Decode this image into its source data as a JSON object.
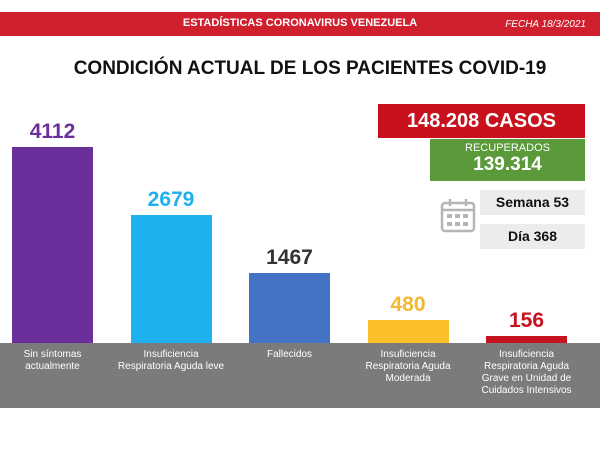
{
  "header": {
    "title": "ESTADÍSTICAS CORONAVIRUS VENEZUELA",
    "date": "FECHA 18/3/2021"
  },
  "summary": {
    "cases": "148.208 CASOS",
    "recovered_label": "RECUPERADOS",
    "recovered": "139.314",
    "week": "Semana 53",
    "day": "Día 368"
  },
  "chart_data": {
    "type": "bar",
    "title": "CONDICIÓN ACTUAL DE LOS PACIENTES COVID-19",
    "categories": [
      "Sin síntomas actualmente",
      "Insuficiencia Respiratoria Aguda leve",
      "Fallecidos",
      "Insuficiencia Respiratoria Aguda Moderada",
      "Insuficiencia Respiratoria Aguda Grave en Unidad de Cuidados Intensivos"
    ],
    "values": [
      4112,
      2679,
      1467,
      480,
      156
    ],
    "colors": [
      "#6b2f9c",
      "#1fb0ef",
      "#4472c4",
      "#fbbf2b",
      "#c5141f"
    ],
    "label_colors": [
      "#6b2f9c",
      "#1fb0ef",
      "#333333",
      "#f2b82e",
      "#c5141f"
    ]
  }
}
